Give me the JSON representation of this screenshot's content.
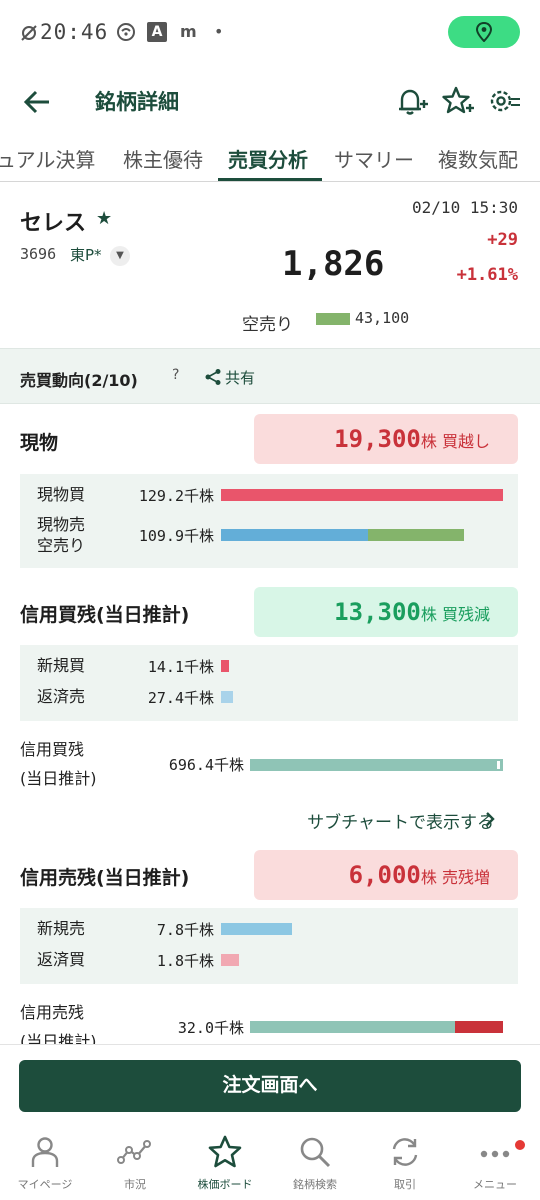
{
  "status": {
    "time": "20:46",
    "icons": [
      "no-sim-icon",
      "wifi-icon",
      "a-badge-icon",
      "app-icon",
      "dot-icon"
    ],
    "a_glyph": "A",
    "m_glyph": "m",
    "dot_glyph": "•"
  },
  "header": {
    "title": "銘柄詳細"
  },
  "tabs": [
    {
      "label": "ュアル決算"
    },
    {
      "label": "株主優待"
    },
    {
      "label": "売買分析",
      "active": true
    },
    {
      "label": "サマリー"
    },
    {
      "label": "複数気配"
    }
  ],
  "stock": {
    "name": "セレス",
    "code": "3696",
    "market": "東P*",
    "datetime": "02/10 15:30",
    "price": "1,826",
    "change": "+29",
    "change_pct": "+1.61%",
    "short_label": "空売り",
    "short_value": "43,100",
    "short_fraction": 0.33
  },
  "section": {
    "title": "売買動向(2/10)",
    "help": "?",
    "share": "共有"
  },
  "genbutsu": {
    "title": "現物",
    "pill_value": "19,300",
    "pill_unit": "株",
    "pill_text": "買越し",
    "rows": [
      {
        "label": "現物買",
        "value": "129.2千株"
      },
      {
        "label1": "現物売",
        "label2": "空売り",
        "value": "109.9千株"
      }
    ]
  },
  "shinyo_kai": {
    "title": "信用買残(当日推計)",
    "pill_value": "13,300",
    "pill_unit": "株",
    "pill_text": "買残減",
    "rows": [
      {
        "label": "新規買",
        "value": "14.1千株"
      },
      {
        "label": "返済売",
        "value": "27.4千株"
      }
    ],
    "zan_label1": "信用買残",
    "zan_label2": "(当日推計)",
    "zan_value": "696.4千株",
    "link": "サブチャートで表示する"
  },
  "shinyo_uri": {
    "title": "信用売残(当日推計)",
    "pill_value": "6,000",
    "pill_unit": "株",
    "pill_text": "売残増",
    "rows": [
      {
        "label": "新規売",
        "value": "7.8千株"
      },
      {
        "label": "返済買",
        "value": "1.8千株"
      }
    ],
    "zan_label1": "信用売残",
    "zan_label2": "(当日推計)",
    "zan_value": "32.0千株"
  },
  "order_button": "注文画面へ",
  "nav": [
    {
      "label": "マイページ",
      "icon": "person-icon"
    },
    {
      "label": "市況",
      "icon": "market-chart-icon"
    },
    {
      "label": "株価ボード",
      "icon": "star-board-icon",
      "active": true
    },
    {
      "label": "銘柄検索",
      "icon": "search-icon"
    },
    {
      "label": "取引",
      "icon": "trade-cycle-icon"
    },
    {
      "label": "メニュー",
      "icon": "more-dots-icon"
    }
  ],
  "colors": {
    "brand": "#1d4d3c",
    "buy_red": "#e9556b",
    "sell_blue": "#63aed8",
    "short_green": "#84b46b",
    "margin_teal": "#8fc4b6",
    "red_text": "#c9323a",
    "green_text": "#1a9e5e"
  }
}
